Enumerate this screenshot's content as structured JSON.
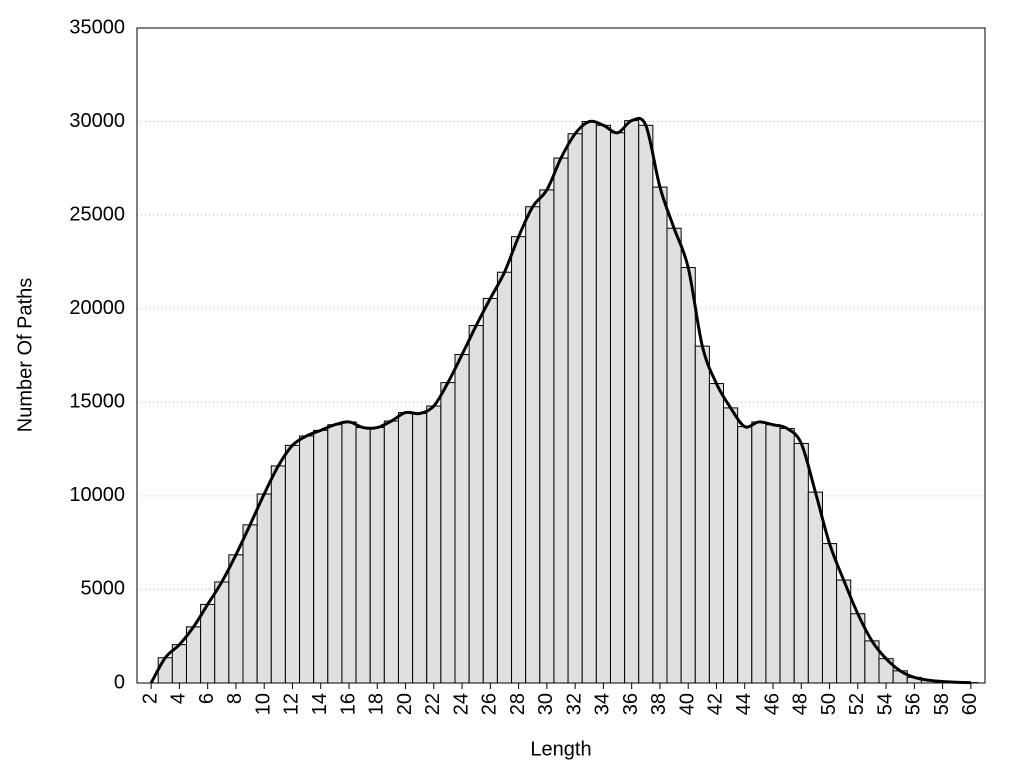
{
  "chart_data": {
    "type": "bar",
    "x_label": "Length",
    "y_label": "Number Of Paths",
    "x": [
      2,
      3,
      4,
      5,
      6,
      7,
      8,
      9,
      10,
      11,
      12,
      13,
      14,
      15,
      16,
      17,
      18,
      19,
      20,
      21,
      22,
      23,
      24,
      25,
      26,
      27,
      28,
      29,
      30,
      31,
      32,
      33,
      34,
      35,
      36,
      37,
      38,
      39,
      40,
      41,
      42,
      43,
      44,
      45,
      46,
      47,
      48,
      49,
      50,
      51,
      52,
      53,
      54,
      55,
      56,
      57,
      58,
      59,
      60
    ],
    "values": [
      0,
      1350,
      2050,
      3000,
      4200,
      5400,
      6850,
      8450,
      10100,
      11600,
      12700,
      13200,
      13500,
      13800,
      13950,
      13650,
      13650,
      14000,
      14450,
      14400,
      14800,
      16050,
      17550,
      19100,
      20550,
      21950,
      23850,
      25450,
      26350,
      28050,
      29350,
      30000,
      29800,
      29400,
      30050,
      29800,
      26500,
      24300,
      22200,
      18000,
      16000,
      14700,
      13700,
      13950,
      13800,
      13600,
      12800,
      10200,
      7450,
      5500,
      3700,
      2250,
      1300,
      650,
      300,
      150,
      80,
      40,
      20
    ],
    "color": "#e0e0e0",
    "line_color": "#000000",
    "smooth_line": true,
    "xlim": [
      1,
      61
    ],
    "xticks": [
      2,
      4,
      6,
      8,
      10,
      12,
      14,
      16,
      18,
      20,
      22,
      24,
      26,
      28,
      30,
      32,
      34,
      36,
      38,
      40,
      42,
      44,
      46,
      48,
      50,
      52,
      54,
      56,
      58,
      60
    ],
    "ylim": [
      0,
      35000
    ],
    "yticks": [
      0,
      5000,
      10000,
      15000,
      20000,
      25000,
      30000,
      35000
    ],
    "grid": true
  }
}
